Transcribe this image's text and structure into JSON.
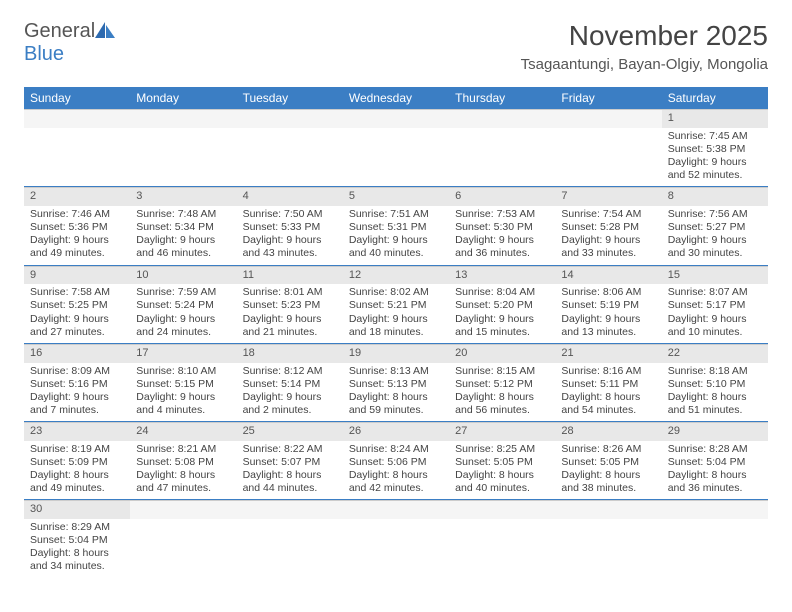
{
  "logo": {
    "text1": "General",
    "text2": "Blue"
  },
  "title": "November 2025",
  "location": "Tsagaantungi, Bayan-Olgiy, Mongolia",
  "colors": {
    "header_bg": "#3b7ec4",
    "header_text": "#ffffff",
    "daynum_bg": "#e8e8e8",
    "week_divider": "#3b7ec4",
    "text": "#444444"
  },
  "dayNames": [
    "Sunday",
    "Monday",
    "Tuesday",
    "Wednesday",
    "Thursday",
    "Friday",
    "Saturday"
  ],
  "weeks": [
    [
      {
        "empty": true
      },
      {
        "empty": true
      },
      {
        "empty": true
      },
      {
        "empty": true
      },
      {
        "empty": true
      },
      {
        "empty": true
      },
      {
        "day": "1",
        "sunrise": "Sunrise: 7:45 AM",
        "sunset": "Sunset: 5:38 PM",
        "daylight": "Daylight: 9 hours and 52 minutes."
      }
    ],
    [
      {
        "day": "2",
        "sunrise": "Sunrise: 7:46 AM",
        "sunset": "Sunset: 5:36 PM",
        "daylight": "Daylight: 9 hours and 49 minutes."
      },
      {
        "day": "3",
        "sunrise": "Sunrise: 7:48 AM",
        "sunset": "Sunset: 5:34 PM",
        "daylight": "Daylight: 9 hours and 46 minutes."
      },
      {
        "day": "4",
        "sunrise": "Sunrise: 7:50 AM",
        "sunset": "Sunset: 5:33 PM",
        "daylight": "Daylight: 9 hours and 43 minutes."
      },
      {
        "day": "5",
        "sunrise": "Sunrise: 7:51 AM",
        "sunset": "Sunset: 5:31 PM",
        "daylight": "Daylight: 9 hours and 40 minutes."
      },
      {
        "day": "6",
        "sunrise": "Sunrise: 7:53 AM",
        "sunset": "Sunset: 5:30 PM",
        "daylight": "Daylight: 9 hours and 36 minutes."
      },
      {
        "day": "7",
        "sunrise": "Sunrise: 7:54 AM",
        "sunset": "Sunset: 5:28 PM",
        "daylight": "Daylight: 9 hours and 33 minutes."
      },
      {
        "day": "8",
        "sunrise": "Sunrise: 7:56 AM",
        "sunset": "Sunset: 5:27 PM",
        "daylight": "Daylight: 9 hours and 30 minutes."
      }
    ],
    [
      {
        "day": "9",
        "sunrise": "Sunrise: 7:58 AM",
        "sunset": "Sunset: 5:25 PM",
        "daylight": "Daylight: 9 hours and 27 minutes."
      },
      {
        "day": "10",
        "sunrise": "Sunrise: 7:59 AM",
        "sunset": "Sunset: 5:24 PM",
        "daylight": "Daylight: 9 hours and 24 minutes."
      },
      {
        "day": "11",
        "sunrise": "Sunrise: 8:01 AM",
        "sunset": "Sunset: 5:23 PM",
        "daylight": "Daylight: 9 hours and 21 minutes."
      },
      {
        "day": "12",
        "sunrise": "Sunrise: 8:02 AM",
        "sunset": "Sunset: 5:21 PM",
        "daylight": "Daylight: 9 hours and 18 minutes."
      },
      {
        "day": "13",
        "sunrise": "Sunrise: 8:04 AM",
        "sunset": "Sunset: 5:20 PM",
        "daylight": "Daylight: 9 hours and 15 minutes."
      },
      {
        "day": "14",
        "sunrise": "Sunrise: 8:06 AM",
        "sunset": "Sunset: 5:19 PM",
        "daylight": "Daylight: 9 hours and 13 minutes."
      },
      {
        "day": "15",
        "sunrise": "Sunrise: 8:07 AM",
        "sunset": "Sunset: 5:17 PM",
        "daylight": "Daylight: 9 hours and 10 minutes."
      }
    ],
    [
      {
        "day": "16",
        "sunrise": "Sunrise: 8:09 AM",
        "sunset": "Sunset: 5:16 PM",
        "daylight": "Daylight: 9 hours and 7 minutes."
      },
      {
        "day": "17",
        "sunrise": "Sunrise: 8:10 AM",
        "sunset": "Sunset: 5:15 PM",
        "daylight": "Daylight: 9 hours and 4 minutes."
      },
      {
        "day": "18",
        "sunrise": "Sunrise: 8:12 AM",
        "sunset": "Sunset: 5:14 PM",
        "daylight": "Daylight: 9 hours and 2 minutes."
      },
      {
        "day": "19",
        "sunrise": "Sunrise: 8:13 AM",
        "sunset": "Sunset: 5:13 PM",
        "daylight": "Daylight: 8 hours and 59 minutes."
      },
      {
        "day": "20",
        "sunrise": "Sunrise: 8:15 AM",
        "sunset": "Sunset: 5:12 PM",
        "daylight": "Daylight: 8 hours and 56 minutes."
      },
      {
        "day": "21",
        "sunrise": "Sunrise: 8:16 AM",
        "sunset": "Sunset: 5:11 PM",
        "daylight": "Daylight: 8 hours and 54 minutes."
      },
      {
        "day": "22",
        "sunrise": "Sunrise: 8:18 AM",
        "sunset": "Sunset: 5:10 PM",
        "daylight": "Daylight: 8 hours and 51 minutes."
      }
    ],
    [
      {
        "day": "23",
        "sunrise": "Sunrise: 8:19 AM",
        "sunset": "Sunset: 5:09 PM",
        "daylight": "Daylight: 8 hours and 49 minutes."
      },
      {
        "day": "24",
        "sunrise": "Sunrise: 8:21 AM",
        "sunset": "Sunset: 5:08 PM",
        "daylight": "Daylight: 8 hours and 47 minutes."
      },
      {
        "day": "25",
        "sunrise": "Sunrise: 8:22 AM",
        "sunset": "Sunset: 5:07 PM",
        "daylight": "Daylight: 8 hours and 44 minutes."
      },
      {
        "day": "26",
        "sunrise": "Sunrise: 8:24 AM",
        "sunset": "Sunset: 5:06 PM",
        "daylight": "Daylight: 8 hours and 42 minutes."
      },
      {
        "day": "27",
        "sunrise": "Sunrise: 8:25 AM",
        "sunset": "Sunset: 5:05 PM",
        "daylight": "Daylight: 8 hours and 40 minutes."
      },
      {
        "day": "28",
        "sunrise": "Sunrise: 8:26 AM",
        "sunset": "Sunset: 5:05 PM",
        "daylight": "Daylight: 8 hours and 38 minutes."
      },
      {
        "day": "29",
        "sunrise": "Sunrise: 8:28 AM",
        "sunset": "Sunset: 5:04 PM",
        "daylight": "Daylight: 8 hours and 36 minutes."
      }
    ],
    [
      {
        "day": "30",
        "sunrise": "Sunrise: 8:29 AM",
        "sunset": "Sunset: 5:04 PM",
        "daylight": "Daylight: 8 hours and 34 minutes."
      },
      {
        "empty": true
      },
      {
        "empty": true
      },
      {
        "empty": true
      },
      {
        "empty": true
      },
      {
        "empty": true
      },
      {
        "empty": true
      }
    ]
  ]
}
